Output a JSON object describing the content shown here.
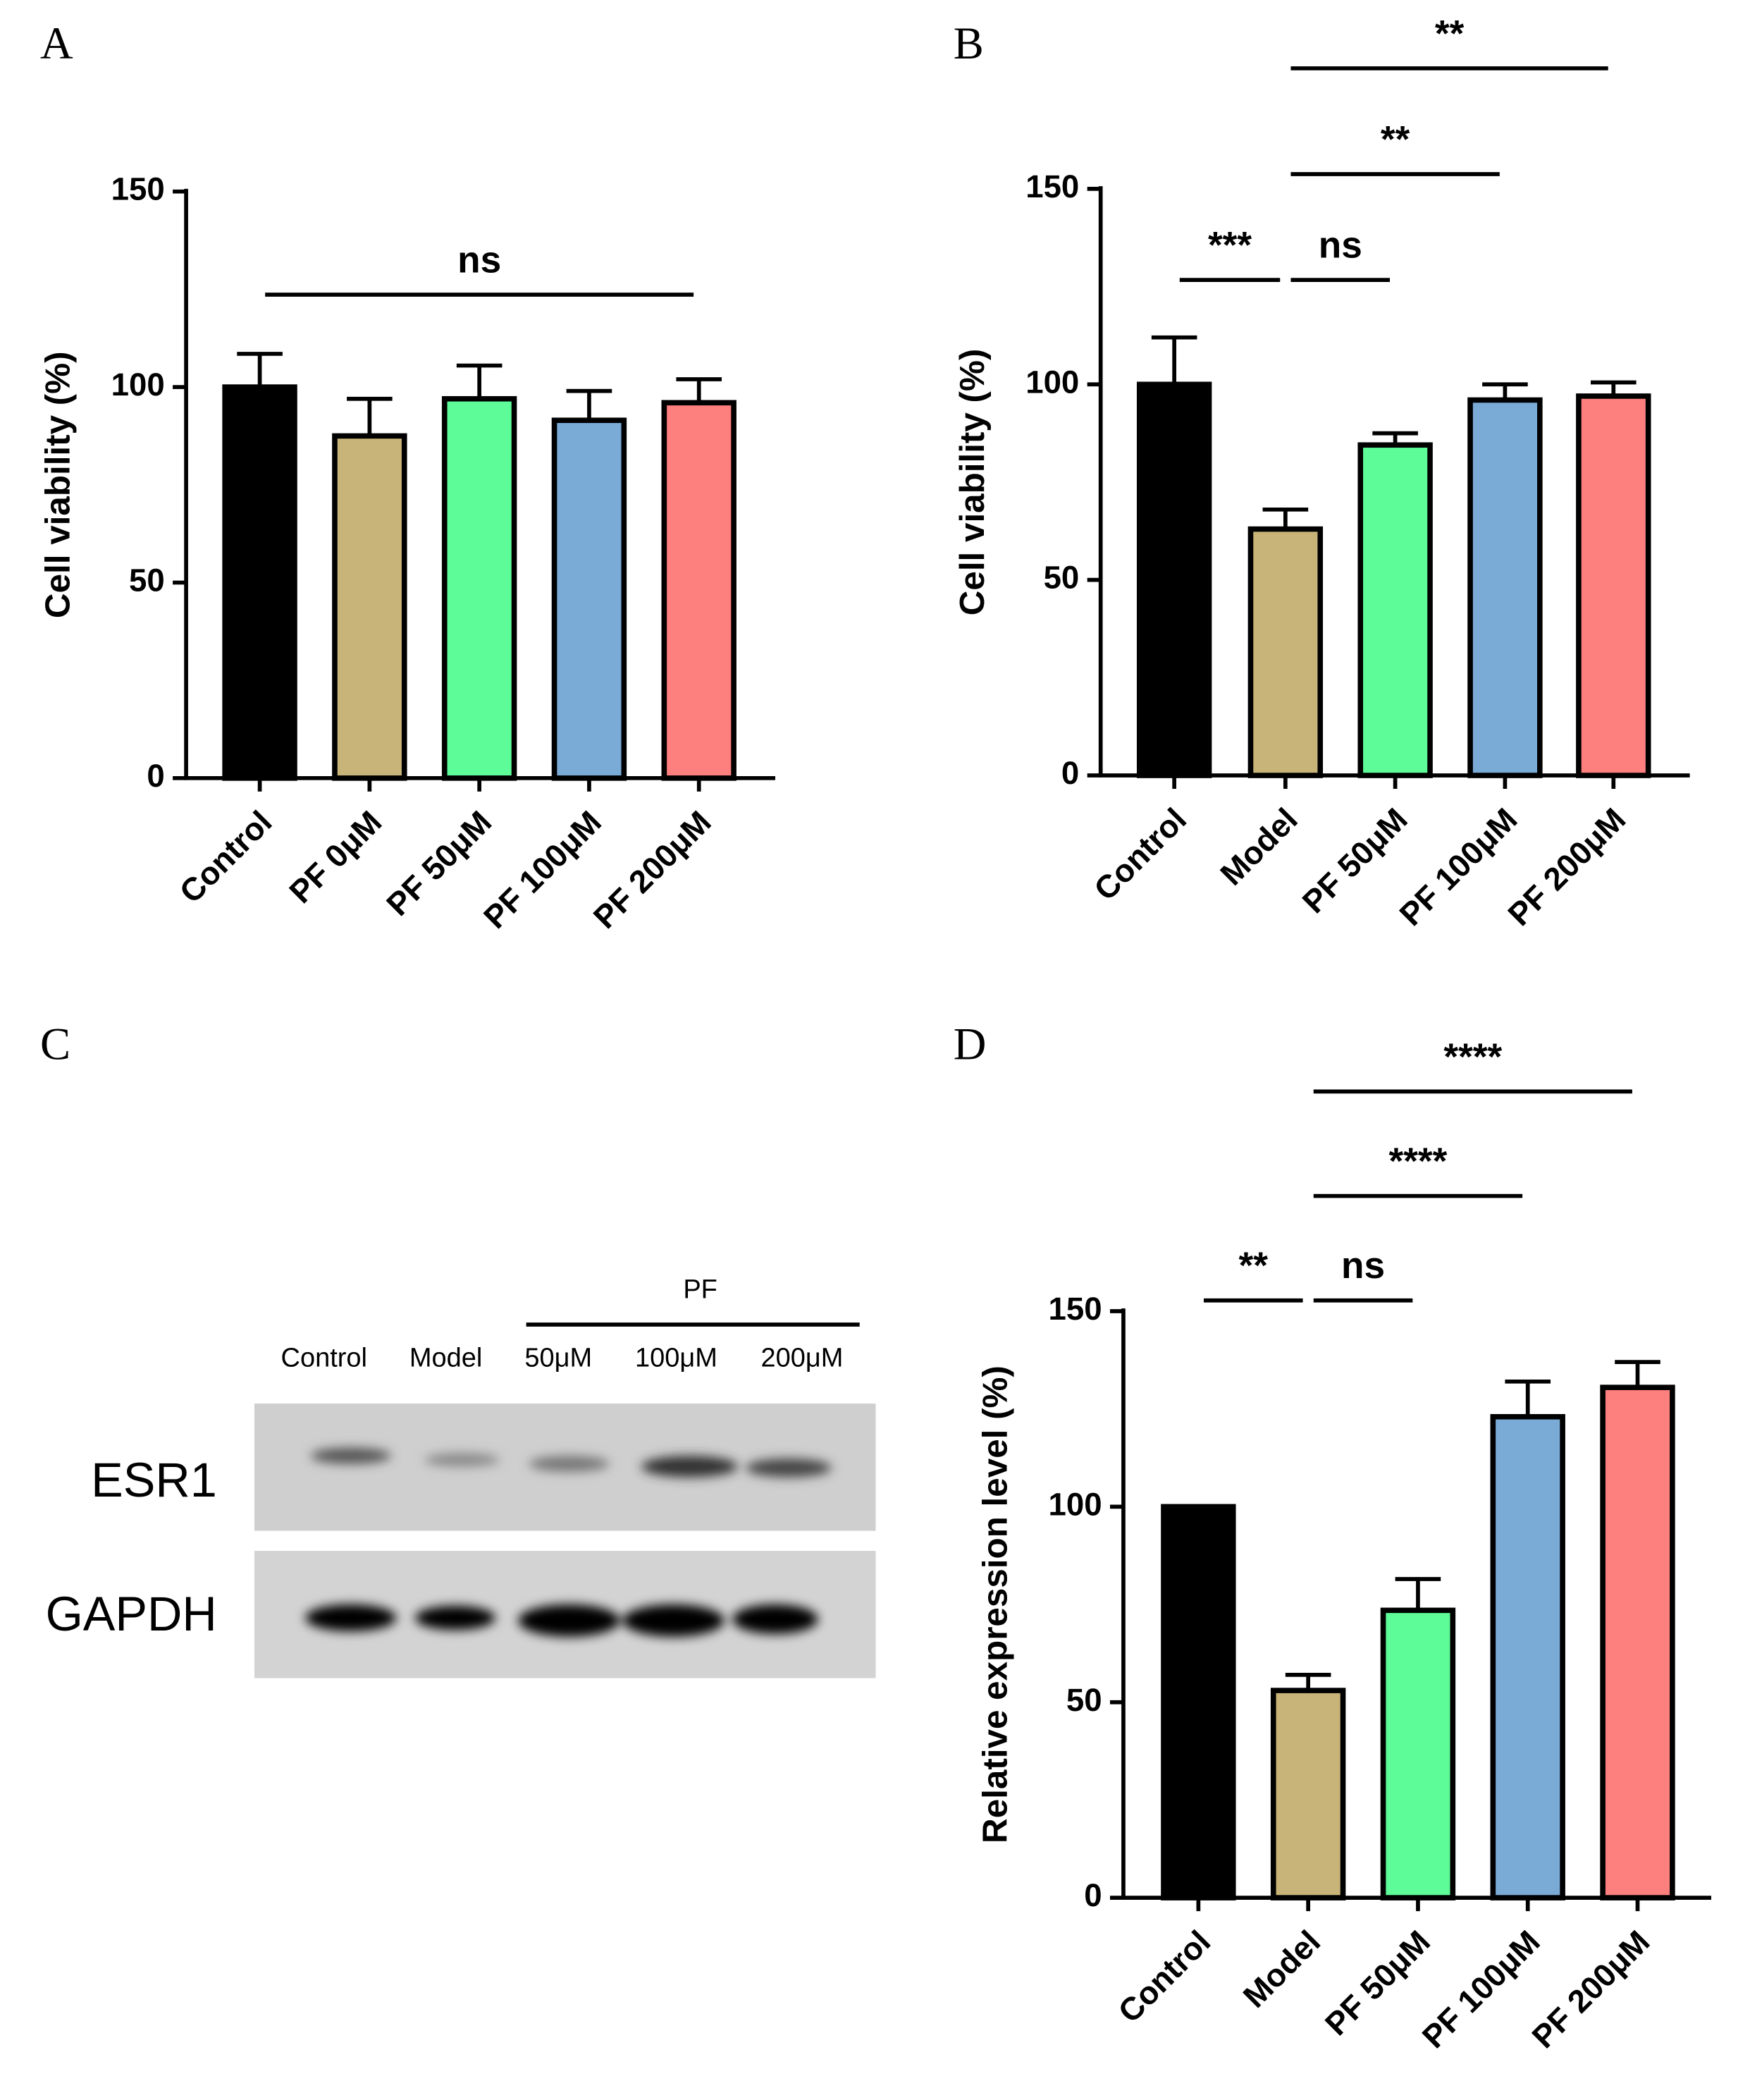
{
  "chart_data": [
    {
      "type": "bar",
      "panel": "A",
      "ylabel": "Cell viability (%)",
      "categories": [
        "Control",
        "PF 0μM",
        "PF 50μM",
        "PF 100μM",
        "PF 200μM"
      ],
      "values": [
        100,
        87.5,
        97,
        91.5,
        96
      ],
      "errors": [
        8.5,
        9.5,
        8.5,
        7.5,
        6
      ],
      "colors": [
        "#000000",
        "#c8b478",
        "#5dfc98",
        "#7aaad6",
        "#fd7f7e"
      ],
      "ylim": [
        0,
        150
      ],
      "yticks": [
        0,
        50,
        100,
        150
      ],
      "comparisons": [
        {
          "from": "Control",
          "to": "PF 200μM",
          "label": "ns"
        }
      ]
    },
    {
      "type": "bar",
      "panel": "B",
      "ylabel": "Cell viability (%)",
      "categories": [
        "Control",
        "Model",
        "PF 50μM",
        "PF 100μM",
        "PF 200μM"
      ],
      "values": [
        100,
        63,
        84.5,
        96,
        97
      ],
      "errors": [
        12,
        5,
        3,
        4,
        3.5
      ],
      "colors": [
        "#000000",
        "#c8b478",
        "#5dfc98",
        "#7aaad6",
        "#fd7f7e"
      ],
      "ylim": [
        0,
        150
      ],
      "yticks": [
        0,
        50,
        100,
        150
      ],
      "comparisons": [
        {
          "from": "Control",
          "to": "Model",
          "label": "***"
        },
        {
          "from": "Model",
          "to": "PF 50μM",
          "label": "ns"
        },
        {
          "from": "Model",
          "to": "PF 100μM",
          "label": "**"
        },
        {
          "from": "Model",
          "to": "PF 200μM",
          "label": "**"
        }
      ]
    },
    {
      "type": "blot",
      "panel": "C",
      "group_label": "PF",
      "lanes": [
        "Control",
        "Model",
        "50μM",
        "100μM",
        "200μM"
      ],
      "rows": [
        "ESR1",
        "GAPDH"
      ]
    },
    {
      "type": "bar",
      "panel": "D",
      "ylabel": "Relative expression level (%)",
      "categories": [
        "Control",
        "Model",
        "PF 50μM",
        "PF 100μM",
        "PF 200μM"
      ],
      "values": [
        100,
        53,
        73.5,
        123,
        130.5
      ],
      "errors": [
        null,
        4,
        8,
        9,
        6.5
      ],
      "colors": [
        "#000000",
        "#c8b478",
        "#5dfc98",
        "#7aaad6",
        "#fd7f7e"
      ],
      "ylim": [
        0,
        150
      ],
      "yticks": [
        0,
        50,
        100,
        150
      ],
      "comparisons": [
        {
          "from": "Control",
          "to": "Model",
          "label": "**"
        },
        {
          "from": "Model",
          "to": "PF 50μM",
          "label": "ns"
        },
        {
          "from": "Model",
          "to": "PF 100μM",
          "label": "****"
        },
        {
          "from": "Model",
          "to": "PF 200μM",
          "label": "****"
        }
      ]
    }
  ]
}
